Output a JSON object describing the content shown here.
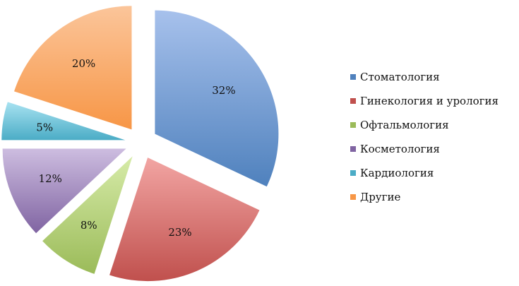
{
  "chart_data": {
    "type": "pie",
    "exploded": true,
    "legend_position": "right",
    "slices": [
      {
        "label": "Стоматология",
        "value": 32,
        "display": "32%",
        "color": "#4f81bd",
        "light": "#a7c1ec"
      },
      {
        "label": "Гинекология и урология",
        "value": 23,
        "display": "23%",
        "color": "#c0504d",
        "light": "#f2a5a3"
      },
      {
        "label": "Офтальмология",
        "value": 8,
        "display": "8%",
        "color": "#9bbb59",
        "light": "#d6eba8"
      },
      {
        "label": "Косметология",
        "value": 12,
        "display": "12%",
        "color": "#8064a2",
        "light": "#cdbde0"
      },
      {
        "label": "Кардиология",
        "value": 5,
        "display": "5%",
        "color": "#4bacc6",
        "light": "#a8e2f1"
      },
      {
        "label": "Другие",
        "value": 20,
        "display": "20%",
        "color": "#f79646",
        "light": "#fbc59a"
      }
    ]
  }
}
